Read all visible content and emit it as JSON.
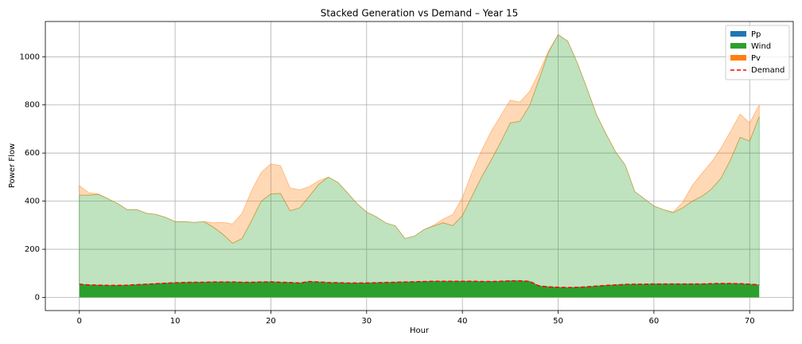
{
  "chart_data": {
    "type": "stacked_area",
    "title": "Stacked Generation vs Demand – Year 15",
    "x_label": "Hour",
    "y_label": "Power Flow",
    "x": [
      0,
      1,
      2,
      3,
      4,
      5,
      6,
      7,
      8,
      9,
      10,
      11,
      12,
      13,
      14,
      15,
      16,
      17,
      18,
      19,
      20,
      21,
      22,
      23,
      24,
      25,
      26,
      27,
      28,
      29,
      30,
      31,
      32,
      33,
      34,
      35,
      36,
      37,
      38,
      39,
      40,
      41,
      42,
      43,
      44,
      45,
      46,
      47,
      48,
      49,
      50,
      51,
      52,
      53,
      54,
      55,
      56,
      57,
      58,
      59,
      60,
      61,
      62,
      63,
      64,
      65,
      66,
      67,
      68,
      69,
      70,
      71
    ],
    "series": [
      {
        "name": "Pp",
        "color": "#1f77b4",
        "values": [
          0,
          0,
          0,
          0,
          0,
          0,
          0,
          0,
          0,
          0,
          0,
          0,
          0,
          0,
          0,
          0,
          0,
          0,
          0,
          0,
          0,
          0,
          0,
          0,
          0,
          0,
          0,
          0,
          0,
          0,
          0,
          0,
          0,
          0,
          0,
          0,
          0,
          0,
          0,
          0,
          0,
          0,
          0,
          0,
          0,
          0,
          0,
          0,
          0,
          0,
          0,
          0,
          0,
          0,
          0,
          0,
          0,
          0,
          0,
          0,
          0,
          0,
          0,
          0,
          0,
          0,
          0,
          0,
          0,
          0,
          0,
          0
        ]
      },
      {
        "name": "Wind",
        "color": "#2ca02c",
        "values": [
          425,
          425,
          428,
          410,
          390,
          365,
          365,
          350,
          345,
          333,
          315,
          315,
          312,
          315,
          292,
          262,
          225,
          245,
          320,
          400,
          430,
          432,
          360,
          372,
          420,
          470,
          500,
          478,
          435,
          390,
          355,
          335,
          310,
          297,
          245,
          255,
          282,
          297,
          310,
          298,
          340,
          420,
          500,
          570,
          645,
          725,
          732,
          795,
          905,
          1020,
          1092,
          1065,
          975,
          870,
          760,
          680,
          605,
          550,
          440,
          410,
          380,
          365,
          352,
          372,
          400,
          420,
          450,
          495,
          572,
          665,
          650,
          752
        ]
      },
      {
        "name": "Pv",
        "color": "#ff7f0e",
        "values": [
          40,
          10,
          2,
          0,
          0,
          0,
          0,
          0,
          0,
          0,
          0,
          0,
          0,
          0,
          18,
          50,
          80,
          105,
          125,
          120,
          125,
          116,
          95,
          75,
          40,
          15,
          0,
          0,
          0,
          0,
          0,
          0,
          0,
          0,
          0,
          0,
          0,
          3,
          15,
          47,
          75,
          100,
          110,
          120,
          110,
          95,
          80,
          60,
          30,
          5,
          0,
          0,
          0,
          0,
          0,
          0,
          0,
          0,
          0,
          0,
          0,
          0,
          3,
          23,
          65,
          95,
          112,
          125,
          118,
          97,
          75,
          48
        ]
      }
    ],
    "demand": {
      "name": "Demand",
      "color": "#ff0000",
      "values": [
        55,
        52,
        51,
        50,
        50,
        51,
        53,
        55,
        57,
        59,
        61,
        62,
        63,
        63,
        64,
        64,
        64,
        63,
        63,
        64,
        65,
        63,
        62,
        60,
        66,
        64,
        62,
        61,
        60,
        60,
        60,
        61,
        62,
        63,
        64,
        65,
        66,
        67,
        67,
        67,
        67,
        67,
        66,
        66,
        67,
        69,
        69,
        67,
        48,
        44,
        42,
        41,
        42,
        44,
        47,
        50,
        52,
        54,
        55,
        55,
        56,
        56,
        56,
        56,
        56,
        56,
        57,
        58,
        58,
        57,
        55,
        52
      ]
    },
    "xlim": [
      -3.55,
      74.55
    ],
    "ylim": [
      -54.6,
      1146.6
    ],
    "xticks": [
      0,
      10,
      20,
      30,
      40,
      50,
      60,
      70
    ],
    "yticks": [
      0,
      200,
      400,
      600,
      800,
      1000
    ],
    "grid": true,
    "legend": "upper right",
    "alpha": 0.3
  }
}
